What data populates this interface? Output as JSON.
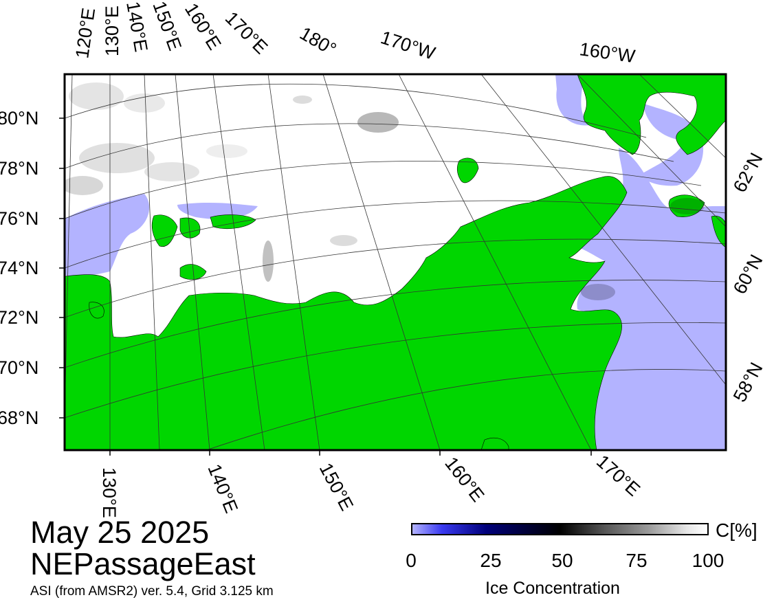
{
  "map": {
    "date": "May 25 2025",
    "region": "NEPassageEast",
    "source": "ASI (from AMSR2) ver. 5.4,  Grid 3.125 km",
    "colors": {
      "land": "#00d600",
      "water": "#b3b3ff",
      "ice": "#ffffff",
      "frame": "#000000",
      "graticule": "#333333"
    },
    "lat_labels_left": [
      "80°N",
      "78°N",
      "76°N",
      "74°N",
      "72°N",
      "70°N",
      "68°N"
    ],
    "lat_labels_right": [
      "62°N",
      "60°N",
      "58°N"
    ],
    "lon_labels_top": [
      "120°E",
      "130°E",
      "140°E",
      "150°E",
      "160°E",
      "170°E",
      "180°",
      "170°W",
      "160°W"
    ],
    "lon_labels_bottom": [
      "130°E",
      "140°E",
      "150°E",
      "160°E",
      "170°E"
    ]
  },
  "colorbar": {
    "title": "Ice Concentration",
    "unit": "C[%]",
    "ticks": [
      "0",
      "25",
      "50",
      "75",
      "100"
    ]
  }
}
